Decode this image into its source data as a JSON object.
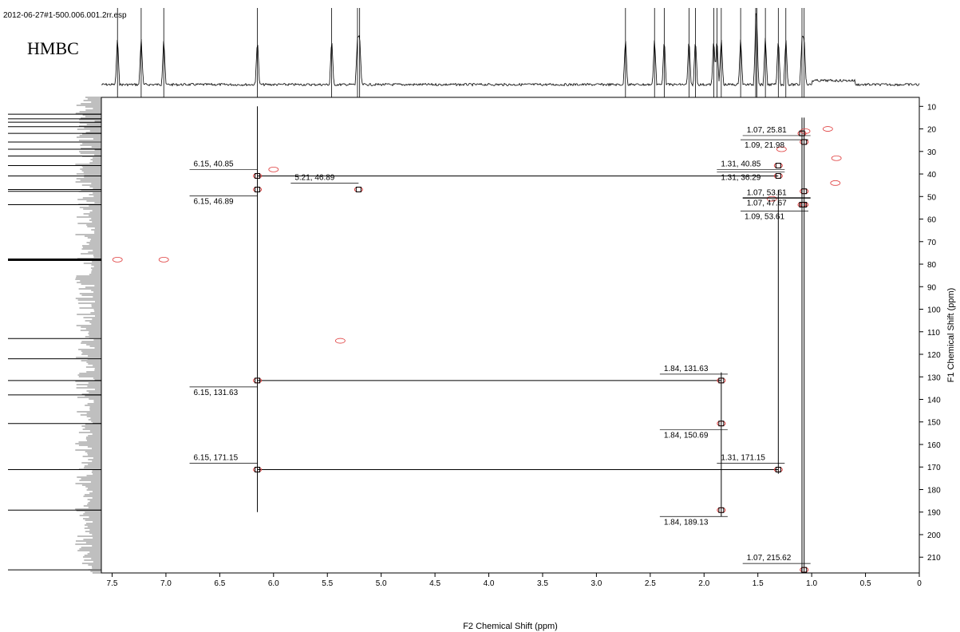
{
  "header": {
    "file_name": "2012-06-27#1-500.006.001.2rr.esp",
    "experiment": "HMBC"
  },
  "chart_data": {
    "type": "scatter",
    "title": "HMBC",
    "xlabel": "F2 Chemical Shift (ppm)",
    "ylabel": "F1 Chemical Shift (ppm)",
    "xlim": [
      7.6,
      0
    ],
    "ylim": [
      6,
      217
    ],
    "x_ticks": [
      7.5,
      7.0,
      6.5,
      6.0,
      5.5,
      5.0,
      4.5,
      4.0,
      3.5,
      3.0,
      2.5,
      2.0,
      1.5,
      1.0,
      0.5,
      0
    ],
    "y_ticks": [
      10,
      20,
      30,
      40,
      50,
      60,
      70,
      80,
      90,
      100,
      110,
      120,
      130,
      140,
      150,
      160,
      170,
      180,
      190,
      200,
      210
    ],
    "x_tick_labels": [
      "7.5",
      "7.0",
      "6.5",
      "6.0",
      "5.5",
      "5.0",
      "4.5",
      "4.0",
      "3.5",
      "3.0",
      "2.5",
      "2.0",
      "1.5",
      "1.0",
      "0.5",
      "0"
    ],
    "y_tick_labels": [
      "10",
      "20",
      "30",
      "40",
      "50",
      "60",
      "70",
      "80",
      "90",
      "100",
      "110",
      "120",
      "130",
      "140",
      "150",
      "160",
      "170",
      "180",
      "190",
      "200",
      "210"
    ],
    "proton_peaks_ppm": [
      7.45,
      7.23,
      7.02,
      6.15,
      5.46,
      5.22,
      5.2,
      2.73,
      2.46,
      2.37,
      2.14,
      2.08,
      1.91,
      1.88,
      1.84,
      1.66,
      1.52,
      1.51,
      1.43,
      1.31,
      1.24,
      1.09,
      1.07
    ],
    "carbon_peaks_ppm": [
      13.5,
      15.5,
      17.0,
      19.0,
      21.98,
      25.81,
      29.0,
      32.0,
      36.29,
      40.85,
      46.89,
      47.67,
      53.61,
      113.0,
      122.0,
      131.63,
      138.0,
      150.69,
      171.15,
      189.13,
      215.62
    ],
    "cross_peaks": [
      {
        "label": "6.15, 40.85",
        "x": 6.15,
        "y": 40.85
      },
      {
        "label": "6.15, 46.89",
        "x": 6.15,
        "y": 46.89
      },
      {
        "label": "5.21, 46.89",
        "x": 5.21,
        "y": 46.89
      },
      {
        "label": "6.15, 131.63",
        "x": 6.15,
        "y": 131.63
      },
      {
        "label": "6.15, 171.15",
        "x": 6.15,
        "y": 171.15
      },
      {
        "label": "1.09, 21.98",
        "x": 1.09,
        "y": 21.98
      },
      {
        "label": "1.07, 25.81",
        "x": 1.07,
        "y": 25.81
      },
      {
        "label": "1.31, 36.29",
        "x": 1.31,
        "y": 36.29
      },
      {
        "label": "1.31, 40.85",
        "x": 1.31,
        "y": 40.85
      },
      {
        "label": "1.07, 47.67",
        "x": 1.07,
        "y": 47.67
      },
      {
        "label": "1.07, 53.61",
        "x": 1.07,
        "y": 53.61
      },
      {
        "label": "1.09, 53.61",
        "x": 1.09,
        "y": 53.61
      },
      {
        "label": "1.84, 131.63",
        "x": 1.84,
        "y": 131.63
      },
      {
        "label": "1.84, 150.69",
        "x": 1.84,
        "y": 150.69
      },
      {
        "label": "1.31, 171.15",
        "x": 1.31,
        "y": 171.15
      },
      {
        "label": "1.84, 189.13",
        "x": 1.84,
        "y": 189.13
      },
      {
        "label": "1.07, 215.62",
        "x": 1.07,
        "y": 215.62
      }
    ],
    "extra_contours": [
      {
        "x": 7.45,
        "y": 78
      },
      {
        "x": 7.02,
        "y": 78
      },
      {
        "x": 5.38,
        "y": 114
      },
      {
        "x": 1.28,
        "y": 29
      },
      {
        "x": 0.77,
        "y": 33
      },
      {
        "x": 0.78,
        "y": 44
      },
      {
        "x": 1.06,
        "y": 21
      },
      {
        "x": 0.85,
        "y": 20
      },
      {
        "x": 6.0,
        "y": 38
      },
      {
        "x": 1.37,
        "y": 51
      }
    ],
    "grid": false,
    "colors": {
      "contour": "#e04040",
      "axis": "#000000",
      "marker": "#000000"
    }
  }
}
